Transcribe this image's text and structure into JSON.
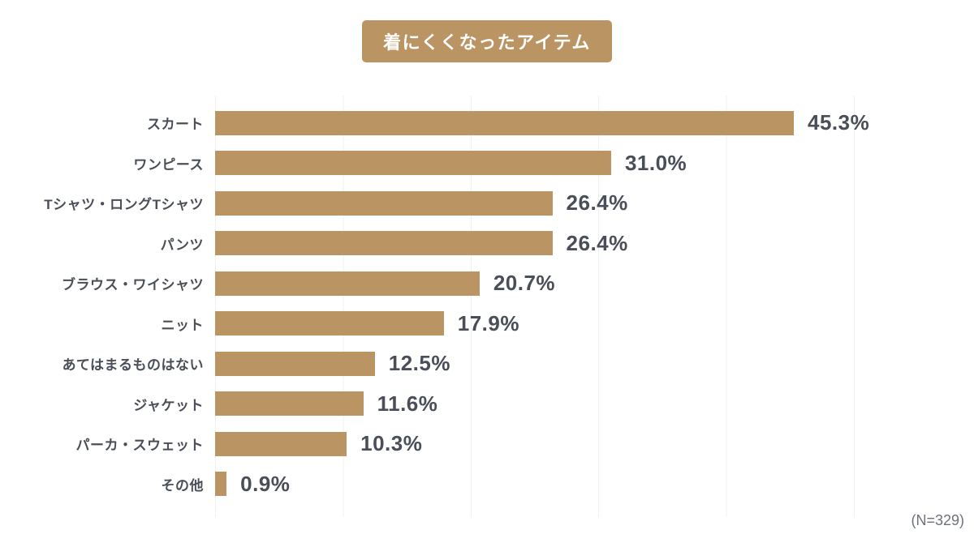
{
  "title": "着にくくなったアイテム",
  "sample_note": "(N=329)",
  "colors": {
    "bar": "#bb9464",
    "title_bg": "#bb9464",
    "title_text": "#ffffff",
    "label_text": "#4a4e59",
    "value_text": "#4a4e59",
    "note_text": "#6d727d",
    "gridline": "#eff0f1",
    "background": "#ffffff"
  },
  "chart_data": {
    "type": "bar",
    "orientation": "horizontal",
    "title": "着にくくなったアイテム",
    "categories": [
      "スカート",
      "ワンピース",
      "Tシャツ・ロングTシャツ",
      "パンツ",
      "ブラウス・ワイシャツ",
      "ニット",
      "あてはまるものはない",
      "ジャケット",
      "パーカ・スウェット",
      "その他"
    ],
    "values": [
      45.3,
      31.0,
      26.4,
      26.4,
      20.7,
      17.9,
      12.5,
      11.6,
      10.3,
      0.9
    ],
    "value_labels": [
      "45.3%",
      "31.0%",
      "26.4%",
      "26.4%",
      "20.7%",
      "17.9%",
      "12.5%",
      "11.6%",
      "10.3%",
      "0.9%"
    ],
    "xlabel": "",
    "ylabel": "",
    "xlim": [
      0,
      50
    ],
    "gridline_interval": 10,
    "grid": true,
    "legend": false,
    "annotation": "(N=329)"
  }
}
